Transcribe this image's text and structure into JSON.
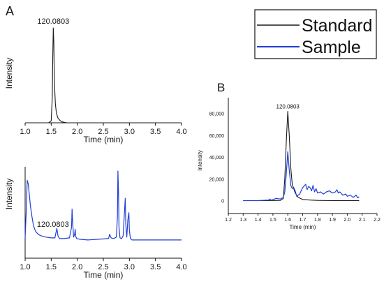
{
  "panel_labels": {
    "a": "A",
    "b": "B"
  },
  "legend": {
    "entries": [
      {
        "label": "Standard",
        "color": "#1a1a1a"
      },
      {
        "label": "Sample",
        "color": "#1f3fd6"
      }
    ]
  },
  "colors": {
    "standard": "#1a1a1a",
    "sample": "#1f3fd6",
    "axis": "#111111"
  },
  "chart_data": [
    {
      "id": "A-top",
      "type": "line",
      "title": "",
      "xlabel": "Time (min)",
      "ylabel": "Intensity",
      "xlim": [
        1.0,
        4.0
      ],
      "x_ticks": [
        "1.0",
        "1.5",
        "2.0",
        "2.5",
        "3.0",
        "3.5",
        "4.0"
      ],
      "y_ticks_shown": false,
      "annotations": [
        {
          "text": "120.0803",
          "x": 1.54
        }
      ],
      "series": [
        {
          "name": "Standard",
          "color": "#1a1a1a",
          "x": [
            1.0,
            1.3,
            1.45,
            1.5,
            1.52,
            1.53,
            1.54,
            1.55,
            1.56,
            1.58,
            1.6,
            1.63,
            1.66,
            1.7,
            1.8,
            2.0,
            4.0
          ],
          "y": [
            0,
            0,
            0,
            0.02,
            0.25,
            0.7,
            1.0,
            0.85,
            0.45,
            0.2,
            0.1,
            0.05,
            0.03,
            0.01,
            0,
            0,
            0
          ]
        }
      ]
    },
    {
      "id": "A-bottom",
      "type": "line",
      "title": "",
      "xlabel": "Time (min)",
      "ylabel": "Intensity",
      "xlim": [
        1.0,
        4.0
      ],
      "x_ticks": [
        "1.0",
        "1.5",
        "2.0",
        "2.5",
        "3.0",
        "3.5",
        "4.0"
      ],
      "y_ticks_shown": false,
      "annotations": [
        {
          "text": "120.0803",
          "x": 1.6
        }
      ],
      "series": [
        {
          "name": "Sample",
          "color": "#1f3fd6",
          "x": [
            1.0,
            1.02,
            1.04,
            1.06,
            1.08,
            1.1,
            1.13,
            1.16,
            1.2,
            1.25,
            1.3,
            1.4,
            1.5,
            1.57,
            1.59,
            1.61,
            1.63,
            1.66,
            1.75,
            1.85,
            1.89,
            1.9,
            1.91,
            1.93,
            1.95,
            1.96,
            1.97,
            1.99,
            2.05,
            2.2,
            2.4,
            2.6,
            2.62,
            2.65,
            2.7,
            2.75,
            2.77,
            2.78,
            2.79,
            2.8,
            2.82,
            2.85,
            2.88,
            2.9,
            2.92,
            2.93,
            2.95,
            2.97,
            2.99,
            3.0,
            3.02,
            3.05,
            3.2,
            3.5,
            4.0
          ],
          "y": [
            0.05,
            0.4,
            0.85,
            0.8,
            0.65,
            0.5,
            0.35,
            0.22,
            0.14,
            0.1,
            0.08,
            0.06,
            0.05,
            0.05,
            0.12,
            0.18,
            0.08,
            0.04,
            0.04,
            0.05,
            0.2,
            0.45,
            0.3,
            0.06,
            0.1,
            0.17,
            0.07,
            0.04,
            0.03,
            0.02,
            0.03,
            0.04,
            0.1,
            0.05,
            0.04,
            0.06,
            0.35,
            0.98,
            0.7,
            0.2,
            0.05,
            0.04,
            0.08,
            0.35,
            0.6,
            0.25,
            0.06,
            0.3,
            0.4,
            0.15,
            0.04,
            0.02,
            0.02,
            0.02,
            0.02
          ]
        }
      ]
    },
    {
      "id": "B",
      "type": "line",
      "title": "",
      "xlabel": "Time (min)",
      "ylabel": "Intensity",
      "xlim": [
        1.2,
        2.2
      ],
      "ylim": [
        -8000,
        90000
      ],
      "x_ticks": [
        "1.2",
        "1.3",
        "1.4",
        "1.5",
        "1.6",
        "1.7",
        "1.8",
        "1.9",
        "2.0",
        "2.1",
        "2.2"
      ],
      "y_ticks": [
        "0",
        "20,000",
        "40,000",
        "60,000",
        "80,000"
      ],
      "annotations": [
        {
          "text": "120.0803",
          "x": 1.6
        }
      ],
      "series": [
        {
          "name": "Standard",
          "color": "#1a1a1a",
          "x": [
            1.3,
            1.45,
            1.55,
            1.57,
            1.58,
            1.59,
            1.6,
            1.61,
            1.62,
            1.63,
            1.65,
            1.67,
            1.7,
            1.75,
            1.8,
            1.9,
            2.0,
            2.08
          ],
          "y": [
            0,
            0,
            200,
            2000,
            20000,
            55000,
            82000,
            60000,
            30000,
            15000,
            7000,
            3000,
            1000,
            500,
            200,
            0,
            0,
            0
          ]
        },
        {
          "name": "Sample",
          "color": "#1f3fd6",
          "x": [
            1.3,
            1.4,
            1.47,
            1.48,
            1.49,
            1.5,
            1.52,
            1.55,
            1.57,
            1.58,
            1.59,
            1.6,
            1.61,
            1.62,
            1.63,
            1.64,
            1.65,
            1.66,
            1.68,
            1.7,
            1.72,
            1.73,
            1.74,
            1.75,
            1.76,
            1.77,
            1.78,
            1.79,
            1.8,
            1.82,
            1.84,
            1.86,
            1.88,
            1.9,
            1.92,
            1.93,
            1.94,
            1.95,
            1.97,
            1.99,
            2.0,
            2.02,
            2.04,
            2.05,
            2.06,
            2.07,
            2.08
          ],
          "y": [
            0,
            0,
            500,
            1500,
            300,
            1000,
            2000,
            1500,
            3000,
            8000,
            25000,
            45000,
            28000,
            14000,
            11000,
            12000,
            9000,
            4000,
            6000,
            12000,
            15000,
            10000,
            13000,
            12000,
            9000,
            14000,
            8000,
            11000,
            7000,
            8000,
            6000,
            8000,
            9000,
            7000,
            8000,
            10000,
            7000,
            8000,
            5000,
            6000,
            4000,
            5000,
            3000,
            4000,
            5000,
            2500,
            3500
          ]
        }
      ]
    }
  ]
}
